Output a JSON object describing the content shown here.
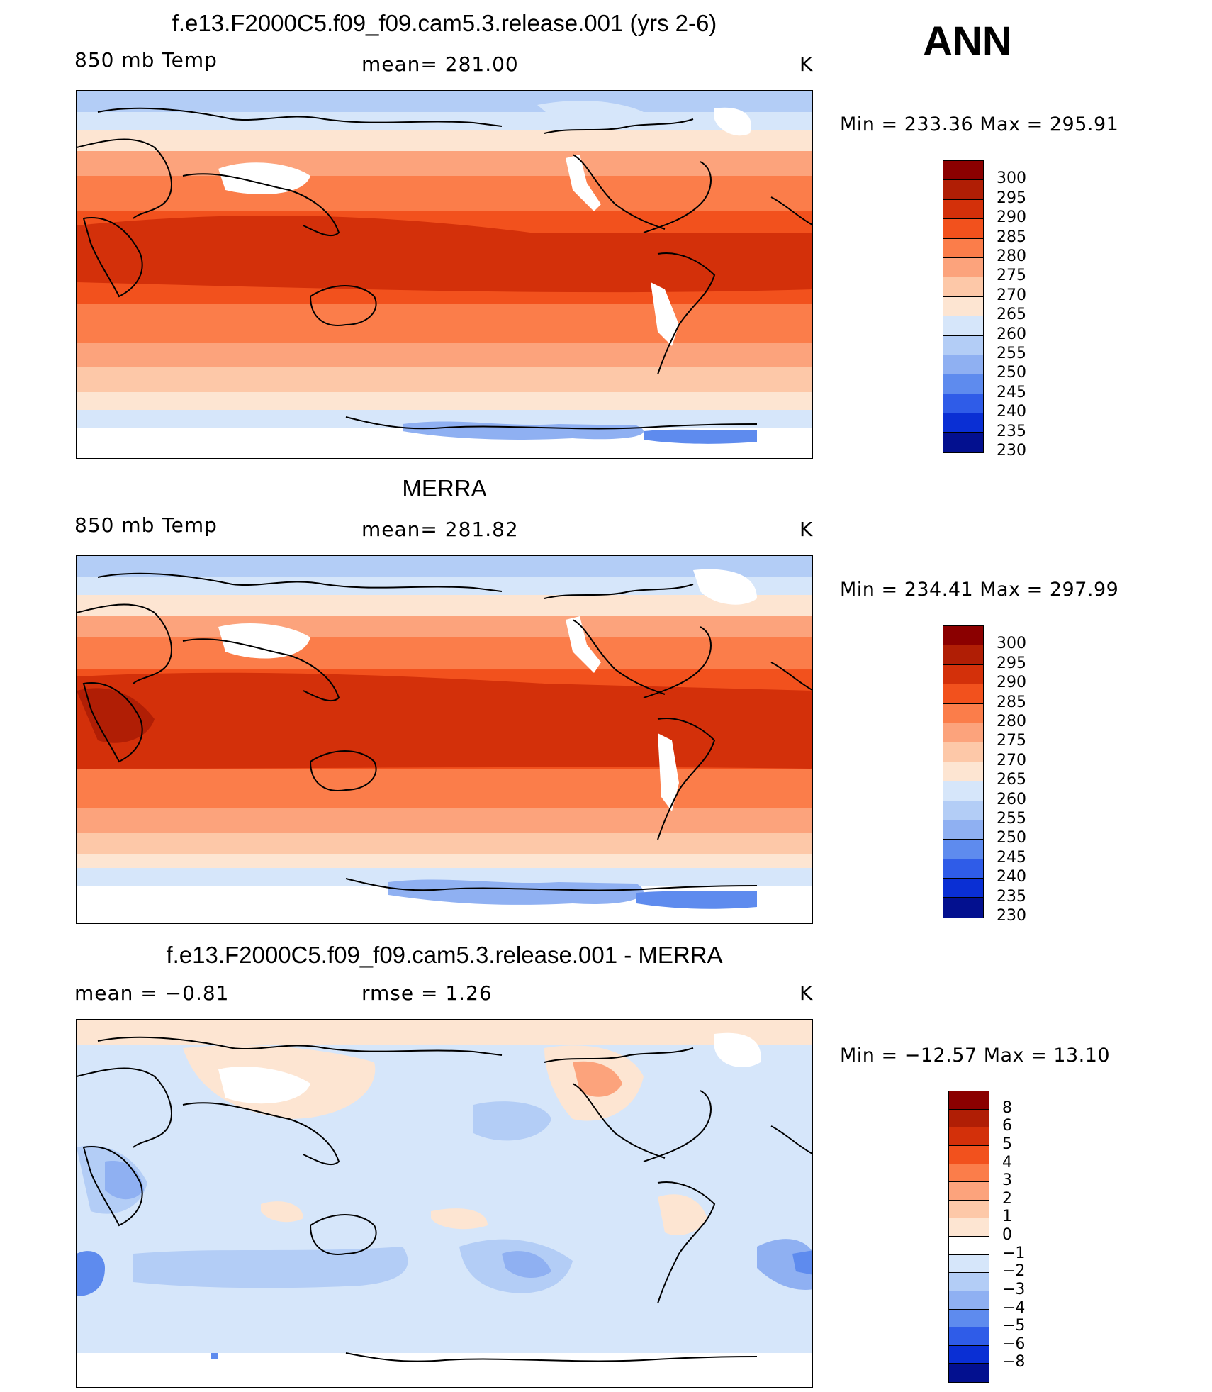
{
  "season": "ANN",
  "panels": [
    {
      "title": "f.e13.F2000C5.f09_f09.cam5.3.release.001 (yrs 2-6)",
      "left": "850 mb Temp",
      "center": "mean= 281.00",
      "unit": "K",
      "minmax": "Min = 233.36 Max = 295.91",
      "ticks": [
        "300",
        "295",
        "290",
        "285",
        "280",
        "275",
        "270",
        "265",
        "260",
        "255",
        "250",
        "245",
        "240",
        "235",
        "230"
      ],
      "palette": [
        "#8b0000",
        "#b01e05",
        "#d3300a",
        "#f2511d",
        "#fb7d4a",
        "#fca37c",
        "#fdc8a8",
        "#fde5d2",
        "#d6e6fa",
        "#b3cdf6",
        "#8fb0f2",
        "#5e8bee",
        "#2f5ce8",
        "#0a2fd4",
        "#03108f"
      ]
    },
    {
      "title": "MERRA",
      "left": "850 mb Temp",
      "center": "mean= 281.82",
      "unit": "K",
      "minmax": "Min = 234.41 Max = 297.99",
      "ticks": [
        "300",
        "295",
        "290",
        "285",
        "280",
        "275",
        "270",
        "265",
        "260",
        "255",
        "250",
        "245",
        "240",
        "235",
        "230"
      ],
      "palette": [
        "#8b0000",
        "#b01e05",
        "#d3300a",
        "#f2511d",
        "#fb7d4a",
        "#fca37c",
        "#fdc8a8",
        "#fde5d2",
        "#d6e6fa",
        "#b3cdf6",
        "#8fb0f2",
        "#5e8bee",
        "#2f5ce8",
        "#0a2fd4",
        "#03108f"
      ]
    },
    {
      "title": "f.e13.F2000C5.f09_f09.cam5.3.release.001 - MERRA",
      "left": "mean = −0.81",
      "center": "rmse = 1.26",
      "unit": "K",
      "minmax": "Min = −12.57 Max = 13.10",
      "ticks": [
        "8",
        "6",
        "5",
        "4",
        "3",
        "2",
        "1",
        "0",
        "−1",
        "−2",
        "−3",
        "−4",
        "−5",
        "−6",
        "−8"
      ],
      "palette": [
        "#8b0000",
        "#b01e05",
        "#d3300a",
        "#f2511d",
        "#fb7d4a",
        "#fca37c",
        "#fdc8a8",
        "#fde5d2",
        "#ffffff",
        "#d6e6fa",
        "#b3cdf6",
        "#8fb0f2",
        "#5e8bee",
        "#2f5ce8",
        "#0a2fd4",
        "#03108f"
      ]
    }
  ]
}
